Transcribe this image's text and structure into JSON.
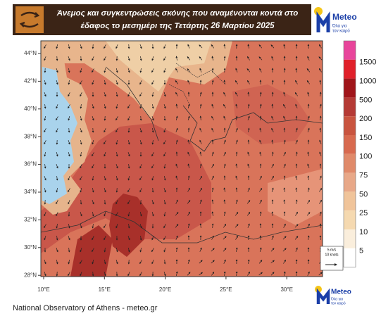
{
  "header": {
    "title_lines": [
      "Άνεμος και συγκεντρώσεις σκόνης που αναμένονται κοντά στο",
      "έδαφος το μεσημέρι της Τετάρτης 26 Μαρτίου 2025"
    ]
  },
  "logo_top": {
    "name": "Meteo",
    "tagline": [
      "Όλα για",
      "τον καιρό"
    ]
  },
  "map": {
    "lat_labels": [
      "44°N",
      "42°N",
      "40°N",
      "38°N",
      "36°N",
      "34°N",
      "32°N",
      "30°N",
      "28°N"
    ],
    "lon_labels": [
      "10°E",
      "15°E",
      "20°E",
      "25°E",
      "30°E"
    ]
  },
  "colorbar": {
    "labels": [
      1500,
      1000,
      500,
      200,
      150,
      100,
      75,
      50,
      25,
      10,
      5
    ]
  },
  "scale": {
    "lines": [
      "5 m/s",
      "10 knots"
    ]
  },
  "logo_bottom": {
    "name": "Meteo",
    "tagline": [
      "Όλα για",
      "τον καιρό"
    ]
  },
  "footer": {
    "text": "National Observatory of Athens - meteo.gr"
  }
}
